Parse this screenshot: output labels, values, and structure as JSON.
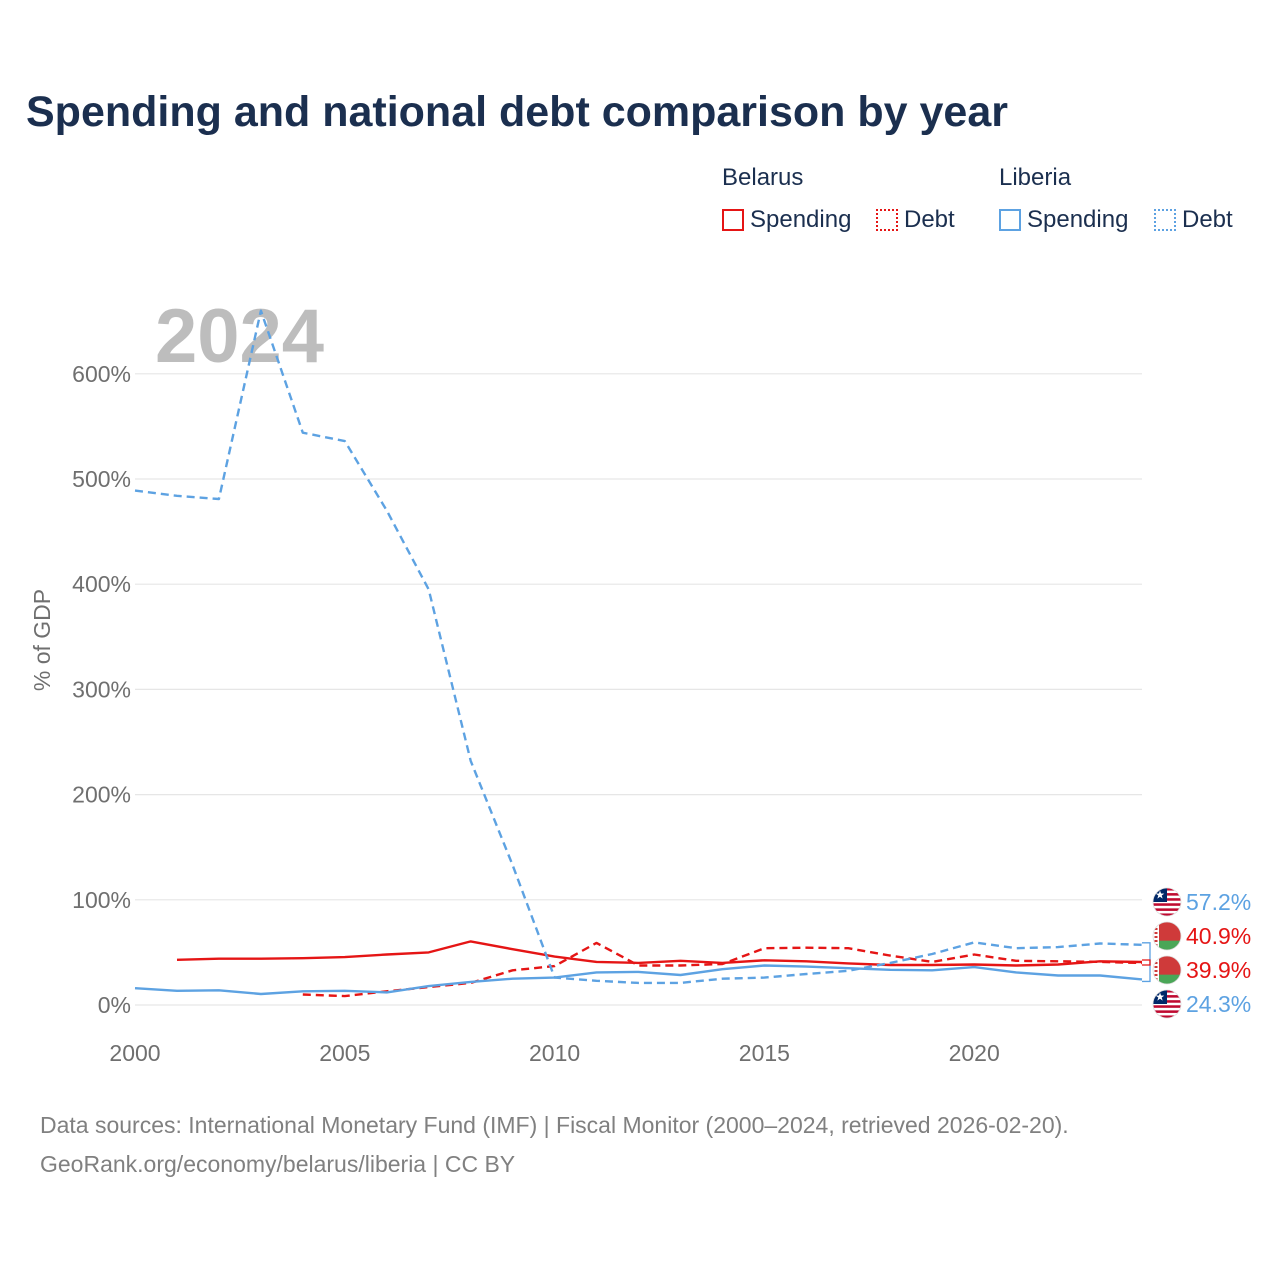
{
  "title": "Spending and national debt comparison by year",
  "legend": {
    "groups": [
      {
        "country": "Belarus",
        "color": "#e51515",
        "items": [
          {
            "label": "Spending",
            "style": "solid"
          },
          {
            "label": "Debt",
            "style": "dotted"
          }
        ]
      },
      {
        "country": "Liberia",
        "color": "#5da2e2",
        "items": [
          {
            "label": "Spending",
            "style": "solid"
          },
          {
            "label": "Debt",
            "style": "dotted"
          }
        ]
      }
    ]
  },
  "source": {
    "line1": "Data sources: International Monetary Fund (IMF) | Fiscal Monitor (2000–2024, retrieved 2026-02-20).",
    "line2": "GeoRank.org/economy/belarus/liberia | CC BY"
  },
  "chart_data": {
    "type": "line",
    "year_label": "2024",
    "ylabel": "% of GDP",
    "xlim": [
      2000,
      2024
    ],
    "ylim": [
      0,
      650
    ],
    "x_ticks": [
      2000,
      2005,
      2010,
      2015,
      2020
    ],
    "y_ticks": [
      0,
      100,
      200,
      300,
      400,
      500,
      600
    ],
    "y_tick_labels": [
      "0%",
      "100%",
      "200%",
      "300%",
      "400%",
      "500%",
      "600%"
    ],
    "series": [
      {
        "name": "Belarus Spending",
        "country": "Belarus",
        "metric": "Spending",
        "color": "#e51515",
        "dash": "solid",
        "x": [
          2001,
          2002,
          2003,
          2004,
          2005,
          2006,
          2007,
          2008,
          2009,
          2010,
          2011,
          2012,
          2013,
          2014,
          2015,
          2016,
          2017,
          2018,
          2019,
          2020,
          2021,
          2022,
          2023,
          2024
        ],
        "values": [
          43,
          44,
          44,
          44.5,
          45.5,
          48,
          50,
          60.5,
          53,
          46,
          41,
          40,
          42,
          40,
          42.5,
          41.5,
          39.5,
          38,
          38,
          38.5,
          37.5,
          38.5,
          41.5,
          40.9
        ]
      },
      {
        "name": "Belarus Debt",
        "country": "Belarus",
        "metric": "Debt",
        "color": "#e51515",
        "dash": "dashed",
        "x": [
          2004,
          2005,
          2006,
          2007,
          2008,
          2009,
          2010,
          2011,
          2012,
          2013,
          2014,
          2015,
          2016,
          2017,
          2018,
          2019,
          2020,
          2021,
          2022,
          2023,
          2024
        ],
        "values": [
          10,
          8.5,
          13,
          17,
          21,
          33,
          37,
          59,
          37.5,
          37.5,
          39,
          54,
          54.5,
          54,
          47,
          41,
          48,
          42,
          41.5,
          41,
          39.9
        ]
      },
      {
        "name": "Liberia Spending",
        "country": "Liberia",
        "metric": "Spending",
        "color": "#5da2e2",
        "dash": "solid",
        "x": [
          2000,
          2001,
          2002,
          2003,
          2004,
          2005,
          2006,
          2007,
          2008,
          2009,
          2010,
          2011,
          2012,
          2013,
          2014,
          2015,
          2016,
          2017,
          2018,
          2019,
          2020,
          2021,
          2022,
          2023,
          2024
        ],
        "values": [
          16,
          13.5,
          14,
          10.5,
          13,
          13.5,
          12,
          18,
          22,
          25,
          26,
          31,
          31.5,
          28.5,
          34,
          37.5,
          36.5,
          35,
          33.5,
          33,
          36,
          31,
          28,
          28,
          24.3
        ]
      },
      {
        "name": "Liberia Debt",
        "country": "Liberia",
        "metric": "Debt",
        "color": "#5da2e2",
        "dash": "dashed",
        "x": [
          2000,
          2001,
          2002,
          2003,
          2004,
          2005,
          2006,
          2007,
          2008,
          2009,
          2010,
          2011,
          2012,
          2013,
          2014,
          2015,
          2016,
          2017,
          2018,
          2019,
          2020,
          2021,
          2022,
          2023,
          2024
        ],
        "values": [
          489,
          484,
          481,
          660,
          544,
          536,
          470,
          395,
          232,
          133,
          26,
          23,
          21,
          21,
          25,
          26,
          29.5,
          32.5,
          40,
          48.5,
          59.5,
          54,
          55,
          58.5,
          57.2
        ]
      }
    ],
    "end_labels": [
      {
        "text": "57.2%",
        "value": 57.2,
        "flag": "liberia",
        "color": "#5da2e2"
      },
      {
        "text": "40.9%",
        "value": 40.9,
        "flag": "belarus",
        "color": "#e51515"
      },
      {
        "text": "39.9%",
        "value": 39.9,
        "flag": "belarus",
        "color": "#e51515"
      },
      {
        "text": "24.3%",
        "value": 24.3,
        "flag": "liberia",
        "color": "#5da2e2"
      }
    ]
  }
}
